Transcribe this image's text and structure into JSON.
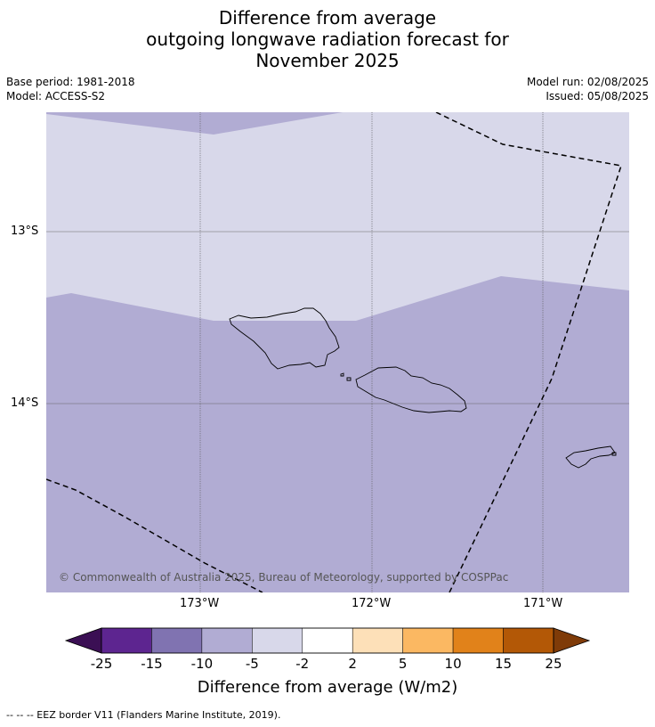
{
  "title_lines": [
    "Difference from average",
    "outgoing longwave radiation forecast for",
    "November 2025"
  ],
  "meta": {
    "base_period": "Base period: 1981-2018",
    "model": "Model: ACCESS-S2",
    "model_run": "Model run: 02/08/2025",
    "issued": "Issued: 05/08/2025"
  },
  "map": {
    "lat_labels": [
      "13°S",
      "14°S"
    ],
    "lon_labels": [
      "173°W",
      "172°W",
      "171°W"
    ],
    "copyright": "© Commonwealth of Australia 2025, Bureau of Meteorology, supported by COSPPac",
    "ocean_colors": {
      "minus5_to_minus2": "#d8d8ea",
      "minus10_to_minus5": "#b1acd3"
    }
  },
  "colorbar": {
    "ticks": [
      "-25",
      "-15",
      "-10",
      "-5",
      "-2",
      "2",
      "5",
      "10",
      "15",
      "25"
    ],
    "colors": [
      "#5d2590",
      "#8073b1",
      "#b1acd3",
      "#d8d8ea",
      "#ffffff",
      "#fde0b8",
      "#fbb862",
      "#e1821a",
      "#b35806"
    ],
    "low_extend_color": "#3b0f54",
    "high_extend_color": "#7f3b08",
    "title": "Difference from average (W/m2)"
  },
  "legend_note": "--  --  -- EEZ border V11 (Flanders Marine Institute, 2019)."
}
